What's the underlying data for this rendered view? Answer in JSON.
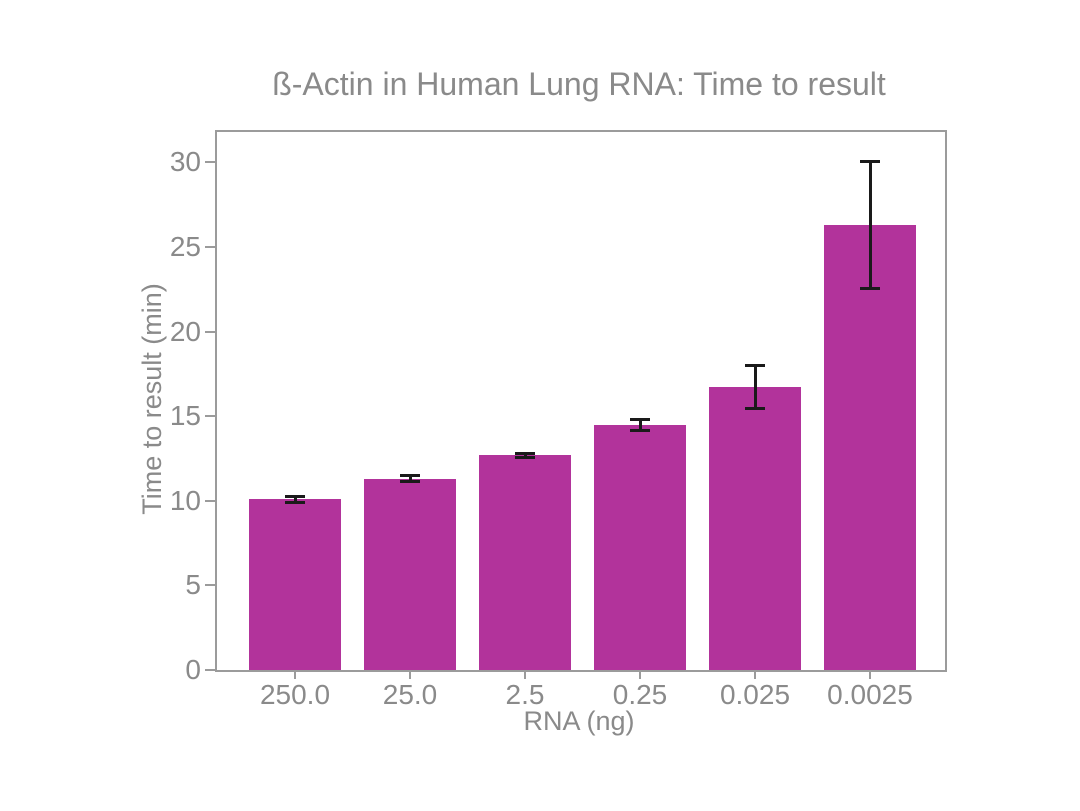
{
  "chart_data": {
    "type": "bar",
    "title": "ß-Actin in Human Lung RNA: Time to result",
    "xlabel": "RNA (ng)",
    "ylabel": "Time to result (min)",
    "categories": [
      "250.0",
      "25.0",
      "2.5",
      "0.25",
      "0.025",
      "0.0025"
    ],
    "values": [
      10.1,
      11.3,
      12.7,
      14.5,
      16.7,
      26.3
    ],
    "errors": [
      0.2,
      0.2,
      0.15,
      0.35,
      1.3,
      3.8
    ],
    "yticks": [
      0,
      5,
      10,
      15,
      20,
      25,
      30
    ],
    "ylim": [
      0,
      31.8
    ],
    "grid": false,
    "legend": null,
    "colors": {
      "bar": "#b2339b",
      "error_bar": "#1a1a1a",
      "text": "#8a8a8a",
      "axis": "#9b9b9b",
      "background": "#ffffff"
    }
  }
}
